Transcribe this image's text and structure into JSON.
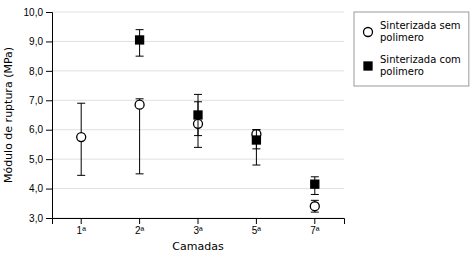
{
  "chart_data": {
    "type": "scatter",
    "xlabel": "Camadas",
    "ylabel": "Módulo de ruptura (MPa)",
    "categories": [
      "1ª",
      "2ª",
      "3ª",
      "5ª",
      "7ª"
    ],
    "ylim": [
      3.0,
      10.0
    ],
    "yticks": [
      {
        "value": 3.0,
        "label": "3,0"
      },
      {
        "value": 4.0,
        "label": "4,0"
      },
      {
        "value": 5.0,
        "label": "5,0"
      },
      {
        "value": 6.0,
        "label": "6,0"
      },
      {
        "value": 7.0,
        "label": "7,0"
      },
      {
        "value": 8.0,
        "label": "8,0"
      },
      {
        "value": 9.0,
        "label": "9,0"
      },
      {
        "value": 10.0,
        "label": "10,0"
      }
    ],
    "grid": "y",
    "legend": "right",
    "series": [
      {
        "name": "Sinterizada sem\npolimero",
        "color": "#000000",
        "marker": "open-circle",
        "values": [
          5.75,
          6.85,
          6.2,
          5.85,
          3.4
        ],
        "error_low": [
          1.3,
          2.35,
          0.8,
          0.5,
          0.2
        ],
        "error_high": [
          1.15,
          0.2,
          0.75,
          0.15,
          0.2
        ]
      },
      {
        "name": "Sinterizada com\npolimero",
        "color": "#000000",
        "marker": "square",
        "values": [
          null,
          9.05,
          6.5,
          5.65,
          4.15
        ],
        "error_low": [
          null,
          0.55,
          0.7,
          0.85,
          0.35
        ],
        "error_high": [
          null,
          0.35,
          0.7,
          0.35,
          0.25
        ]
      }
    ]
  }
}
